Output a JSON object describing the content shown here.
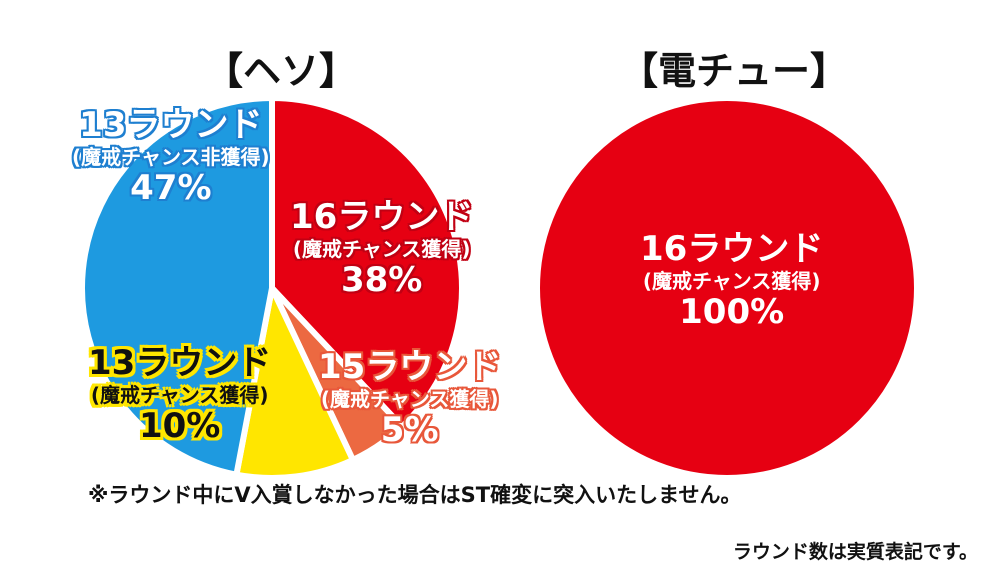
{
  "chart_data": [
    {
      "type": "pie",
      "title": "【ヘソ】",
      "slices": [
        {
          "label": "16ラウンド",
          "sub": "(魔戒チャンス獲得)",
          "value": 38,
          "value_label": "38%",
          "color": "#e60012"
        },
        {
          "label": "15ラウンド",
          "sub": "(魔戒チャンス獲得)",
          "value": 5,
          "value_label": "5%",
          "color": "#ec6941"
        },
        {
          "label": "13ラウンド",
          "sub": "(魔戒チャンス獲得)",
          "value": 10,
          "value_label": "10%",
          "color": "#ffe600"
        },
        {
          "label": "13ラウンド",
          "sub": "(魔戒チャンス非獲得)",
          "value": 47,
          "value_label": "47%",
          "color": "#1e9ae0"
        }
      ]
    },
    {
      "type": "pie",
      "title": "【電チュー】",
      "slices": [
        {
          "label": "16ラウンド",
          "sub": "(魔戒チャンス獲得)",
          "value": 100,
          "value_label": "100%",
          "color": "#e60012"
        }
      ]
    }
  ],
  "note": "※ラウンド中にV入賞しなかった場合はST確変に突入いたしません。",
  "footnote": "ラウンド数は実質表記です。"
}
